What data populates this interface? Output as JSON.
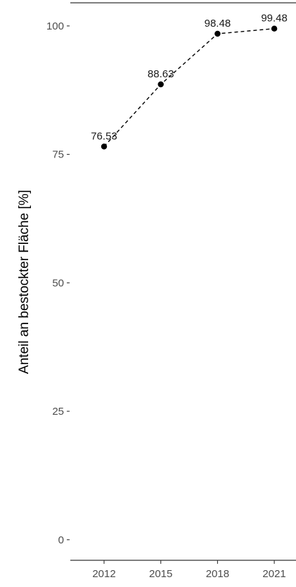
{
  "chart_data": {
    "type": "line",
    "title": "",
    "xlabel": "",
    "ylabel": "Anteil an bestockter Fläche [%]",
    "x": [
      "2012",
      "2015",
      "2018",
      "2021"
    ],
    "series": [
      {
        "values": [
          76.53,
          88.63,
          98.48,
          99.48
        ],
        "labels": [
          "76.53",
          "88.63",
          "98.48",
          "99.48"
        ],
        "line_style": "dashed",
        "marker": "filled-circle",
        "color": "#000000"
      }
    ],
    "ylim": [
      -4,
      104.5
    ],
    "yticks": [
      0,
      25,
      50,
      75,
      100
    ],
    "ytick_labels": [
      "0",
      "25",
      "50",
      "75",
      "100"
    ],
    "grid": false,
    "legend": "none"
  }
}
